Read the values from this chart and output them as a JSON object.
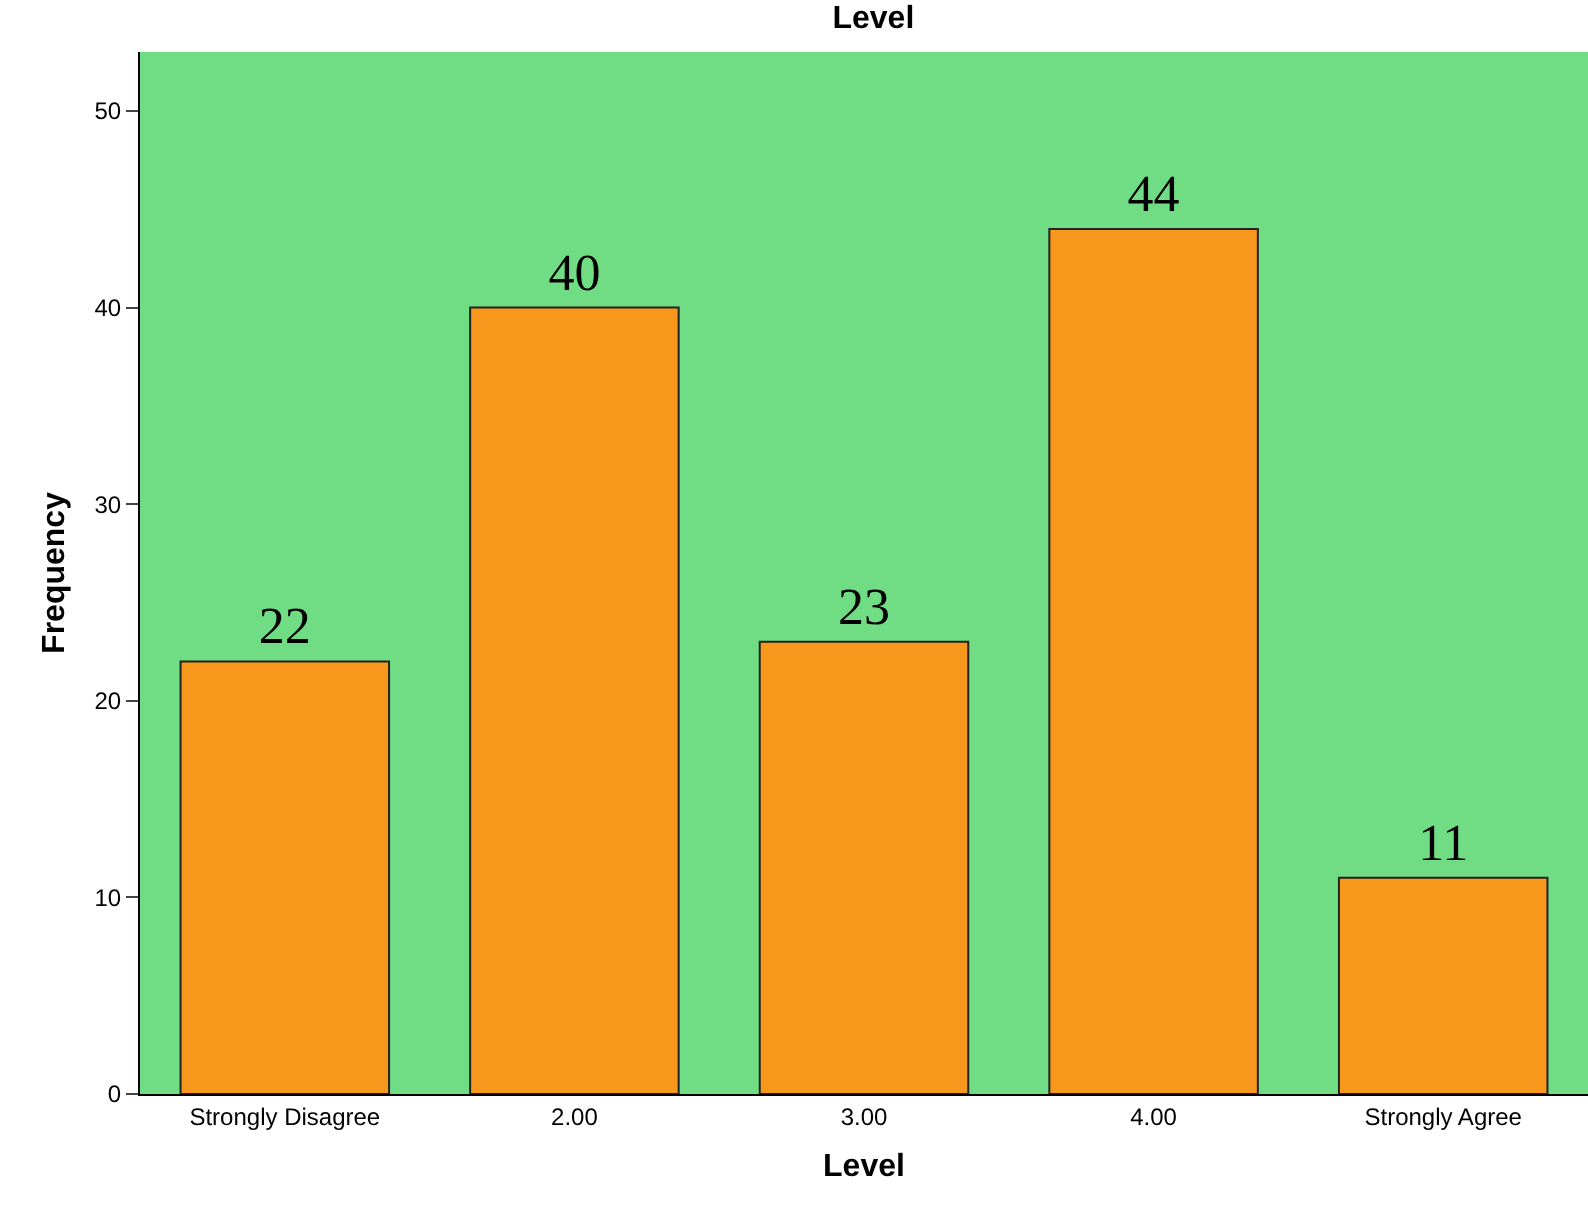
{
  "chart_data": {
    "type": "bar",
    "title": "Level",
    "xlabel": "Level",
    "ylabel": "Frequency",
    "categories": [
      "Strongly Disagree",
      "2.00",
      "3.00",
      "4.00",
      "Strongly Agree"
    ],
    "values": [
      22,
      40,
      23,
      44,
      11
    ],
    "color": "#f7981d",
    "ylim": [
      0,
      53
    ],
    "yticks": [
      0,
      10,
      20,
      30,
      40,
      50
    ],
    "grid": false,
    "data_labels": true
  }
}
